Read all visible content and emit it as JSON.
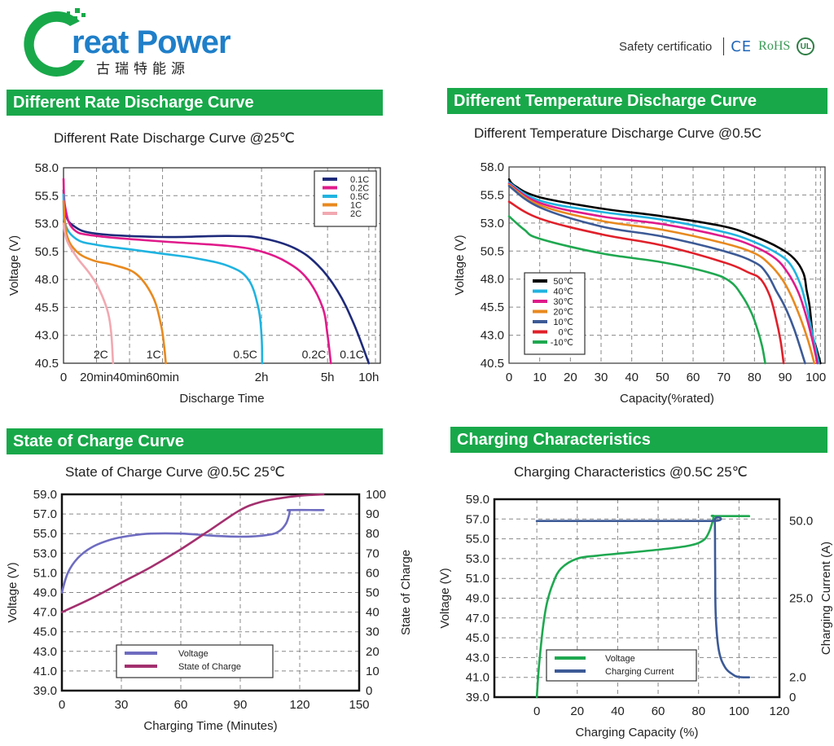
{
  "header": {
    "logo_text": "reat Power",
    "logo_cn": "古瑞特能源",
    "safety_label": "Safety certificatio",
    "cert_ce": "CE",
    "cert_rohs": "RoHS",
    "cert_ul": "UL"
  },
  "sections": [
    {
      "banner": "Different Rate Discharge Curve",
      "subtitle": "Different Rate Discharge Curve @25℃"
    },
    {
      "banner": "Different Temperature Discharge Curve",
      "subtitle": "Different Temperature Discharge Curve @0.5C"
    },
    {
      "banner": "State of Charge Curve",
      "subtitle": "State of Charge Curve @0.5C 25℃"
    },
    {
      "banner": "Charging Characteristics",
      "subtitle": "Charging Characteristics @0.5C 25℃"
    }
  ],
  "colors": {
    "banner": "#18a84a"
  },
  "chart_data": [
    {
      "type": "line",
      "title": "Different Rate Discharge Curve @25℃",
      "xlabel": "Discharge Time",
      "ylabel": "Voltage (V)",
      "ylim": [
        40.5,
        58.0
      ],
      "yticks": [
        40.5,
        43.0,
        45.5,
        48.0,
        50.5,
        53.0,
        55.5,
        58.0
      ],
      "xticks": [
        {
          "pos": 0,
          "label": "0"
        },
        {
          "pos": 1,
          "label": "20min"
        },
        {
          "pos": 2,
          "label": "40min"
        },
        {
          "pos": 3,
          "label": "60min"
        },
        {
          "pos": 6,
          "label": "2h"
        },
        {
          "pos": 8,
          "label": "5h"
        },
        {
          "pos": 9.25,
          "label": "10h"
        }
      ],
      "xlim": [
        0,
        9.6
      ],
      "grid": true,
      "legend": "top-right",
      "series": [
        {
          "name": "0.1C",
          "color": "#1e2a7a",
          "end_label": "0.1C",
          "x": [
            0,
            0.05,
            0.3,
            1,
            3,
            5,
            6,
            7,
            7.7,
            8.3,
            8.8,
            9.25
          ],
          "y": [
            56.0,
            54.0,
            52.8,
            52.1,
            51.8,
            51.9,
            51.7,
            50.8,
            49.3,
            47.0,
            44.0,
            40.5
          ]
        },
        {
          "name": "0.2C",
          "color": "#e01a8a",
          "end_label": "0.2C",
          "x": [
            0,
            0.05,
            0.3,
            1,
            3,
            5,
            6,
            6.8,
            7.4,
            7.85,
            8.0,
            8.1
          ],
          "y": [
            57.0,
            54.5,
            52.5,
            51.9,
            51.4,
            51.0,
            50.5,
            49.5,
            48.0,
            45.5,
            43.0,
            40.5
          ]
        },
        {
          "name": "0.5C",
          "color": "#1fb3e0",
          "end_label": "0.5C",
          "x": [
            0,
            0.05,
            0.4,
            1,
            2,
            3,
            4,
            5,
            5.6,
            5.9,
            6.0,
            6.02
          ],
          "y": [
            55.6,
            53.0,
            51.6,
            51.1,
            50.7,
            50.3,
            49.9,
            49.2,
            48.0,
            45.5,
            43.0,
            40.5
          ]
        },
        {
          "name": "1C",
          "color": "#e8891e",
          "end_label": "1C",
          "x": [
            0,
            0.1,
            0.4,
            0.9,
            1.5,
            2.2,
            2.7,
            2.95,
            3.05,
            3.1
          ],
          "y": [
            55.0,
            52.0,
            50.5,
            49.7,
            49.3,
            48.5,
            46.5,
            44.0,
            42.0,
            40.5
          ]
        },
        {
          "name": "2C",
          "color": "#f2a8b0",
          "end_label": "2C",
          "x": [
            0,
            0.1,
            0.4,
            0.8,
            1.1,
            1.35,
            1.45,
            1.5
          ],
          "y": [
            53.0,
            51.5,
            50.0,
            48.5,
            47.0,
            45.0,
            43.0,
            40.5
          ]
        }
      ]
    },
    {
      "type": "line",
      "title": "Different Temperature Discharge Curve @0.5C",
      "xlabel": "Capacity(%rated)",
      "ylabel": "Voltage (V)",
      "ylim": [
        40.5,
        58.0
      ],
      "yticks": [
        40.5,
        43.0,
        45.5,
        48.0,
        50.5,
        53.0,
        55.5,
        58.0
      ],
      "xlim": [
        0,
        103
      ],
      "xticks": [
        0,
        10,
        20,
        30,
        40,
        50,
        60,
        70,
        80,
        90,
        100
      ],
      "grid": true,
      "legend": "bottom-left",
      "series": [
        {
          "name": "50℃",
          "color": "#000000",
          "x": [
            0,
            2,
            10,
            30,
            50,
            70,
            80,
            88,
            93,
            96,
            97,
            98,
            99,
            100,
            101.5
          ],
          "y": [
            56.9,
            56.3,
            55.3,
            54.3,
            53.6,
            52.7,
            51.8,
            50.8,
            49.8,
            48.5,
            47.0,
            45.5,
            43.0,
            42.0,
            40.5
          ]
        },
        {
          "name": "40℃",
          "color": "#1fb3e0",
          "x": [
            0,
            10,
            30,
            50,
            70,
            80,
            88,
            92,
            95,
            97,
            99,
            101
          ],
          "y": [
            56.6,
            55.0,
            54.0,
            53.3,
            52.2,
            51.3,
            50.2,
            49.2,
            47.5,
            45.5,
            43.0,
            40.5
          ]
        },
        {
          "name": "30℃",
          "color": "#e01a8a",
          "x": [
            0,
            10,
            30,
            50,
            70,
            80,
            87,
            91,
            94,
            96,
            98.5,
            100.5
          ],
          "y": [
            56.5,
            54.8,
            53.6,
            52.9,
            51.8,
            50.9,
            49.8,
            48.5,
            47.0,
            45.5,
            43.0,
            40.5
          ]
        },
        {
          "name": "20℃",
          "color": "#e8891e",
          "x": [
            0,
            10,
            30,
            50,
            70,
            80,
            85,
            89,
            92,
            95,
            97.5,
            99.5
          ],
          "y": [
            56.4,
            54.6,
            53.2,
            52.4,
            51.2,
            50.3,
            49.3,
            48.0,
            46.5,
            44.5,
            42.5,
            40.5
          ]
        },
        {
          "name": "10℃",
          "color": "#3c5a96",
          "x": [
            0,
            10,
            30,
            50,
            70,
            80,
            84,
            87,
            90,
            93,
            96.5
          ],
          "y": [
            56.3,
            54.4,
            52.7,
            51.8,
            50.5,
            49.5,
            48.5,
            47.0,
            45.5,
            43.5,
            40.5
          ]
        },
        {
          "name": "0℃",
          "color": "#e0202a",
          "x": [
            0,
            10,
            30,
            50,
            70,
            78,
            82,
            85,
            87,
            88.5,
            89.5
          ],
          "y": [
            54.9,
            53.4,
            52.0,
            51.0,
            49.5,
            48.6,
            48.0,
            46.5,
            44.5,
            42.5,
            40.5
          ]
        },
        {
          "name": "-10℃",
          "color": "#1fa850",
          "x": [
            0,
            5,
            10,
            30,
            50,
            65,
            72,
            76,
            79,
            81,
            82.5,
            83.5
          ],
          "y": [
            53.6,
            52.4,
            51.6,
            50.3,
            49.5,
            48.6,
            47.8,
            46.5,
            45.0,
            43.5,
            42.0,
            40.5
          ]
        }
      ]
    },
    {
      "type": "line",
      "title": "State of Charge Curve @0.5C 25℃",
      "xlabel": "Charging Time (Minutes)",
      "ylabel": "Voltage (V)",
      "y2label": "State of Charge",
      "xlim": [
        0,
        150
      ],
      "xticks": [
        0,
        30,
        60,
        90,
        120,
        150
      ],
      "ylim": [
        39.0,
        59.0
      ],
      "yticks": [
        39.0,
        41.0,
        43.0,
        45.0,
        47.0,
        49.0,
        51.0,
        53.0,
        55.0,
        57.0,
        59.0
      ],
      "y2lim": [
        0,
        100
      ],
      "y2ticks": [
        0,
        10,
        20,
        30,
        40,
        50,
        60,
        70,
        80,
        90,
        100
      ],
      "grid": true,
      "legend": "bottom-center",
      "series": [
        {
          "name": "Voltage",
          "axis": "left",
          "color": "#6e6cc0",
          "x": [
            0,
            3,
            8,
            15,
            25,
            35,
            45,
            60,
            75,
            85,
            95,
            105,
            110,
            113,
            114.5,
            115,
            115.3,
            132
          ],
          "y": [
            49.0,
            51.0,
            52.5,
            53.6,
            54.4,
            54.8,
            55.0,
            55.0,
            54.8,
            54.7,
            54.7,
            54.9,
            55.3,
            56.0,
            56.8,
            57.3,
            57.4,
            57.4
          ]
        },
        {
          "name": "State of Charge",
          "axis": "right",
          "color": "#a3306f",
          "x": [
            0,
            15,
            30,
            45,
            60,
            75,
            90,
            100,
            110,
            120,
            132
          ],
          "y": [
            40,
            47,
            55,
            63,
            72,
            82,
            92,
            96,
            98,
            99.3,
            100
          ]
        }
      ]
    },
    {
      "type": "line",
      "title": "Charging Characteristics @0.5C 25℃",
      "xlabel": "Charging Capacity (%)",
      "ylabel": "Voltage (V)",
      "y2label": "Charging Current (A)",
      "xlim": [
        -21,
        120
      ],
      "xticks": [
        0,
        20,
        40,
        60,
        80,
        100,
        120
      ],
      "ylim": [
        39.0,
        59.0
      ],
      "yticks": [
        39.0,
        41.0,
        43.0,
        45.0,
        47.0,
        49.0,
        51.0,
        53.0,
        55.0,
        57.0,
        59.0
      ],
      "y2ticks": [
        {
          "value": 0,
          "label": "0",
          "voltage_equiv": 39.0
        },
        {
          "value": 2.0,
          "label": "2.0",
          "voltage_equiv": 41.0
        },
        {
          "value": 25.0,
          "label": "25.0",
          "voltage_equiv": 49.0
        },
        {
          "value": 50.0,
          "label": "50.0",
          "voltage_equiv": 56.8
        }
      ],
      "grid": true,
      "legend": "bottom-center",
      "series": [
        {
          "name": "Voltage",
          "axis": "left",
          "color": "#1fa850",
          "x": [
            0,
            1,
            3,
            5,
            8,
            12,
            20,
            30,
            40,
            60,
            75,
            82,
            85,
            87,
            87.5,
            88,
            105
          ],
          "y": [
            39.0,
            42.0,
            46.0,
            48.5,
            50.5,
            52.0,
            53.0,
            53.3,
            53.5,
            53.9,
            54.3,
            54.8,
            55.6,
            56.8,
            57.3,
            57.3,
            57.3
          ]
        },
        {
          "name": "Charging Current",
          "axis": "right",
          "color": "#3c5a96",
          "x": [
            0,
            40,
            87,
            88,
            88.2,
            88.5,
            90,
            93,
            97,
            100,
            105
          ],
          "y": [
            50.0,
            50.0,
            50.0,
            50.0,
            35.0,
            20.0,
            10.0,
            5.0,
            2.8,
            2.1,
            2.0
          ]
        }
      ]
    }
  ]
}
